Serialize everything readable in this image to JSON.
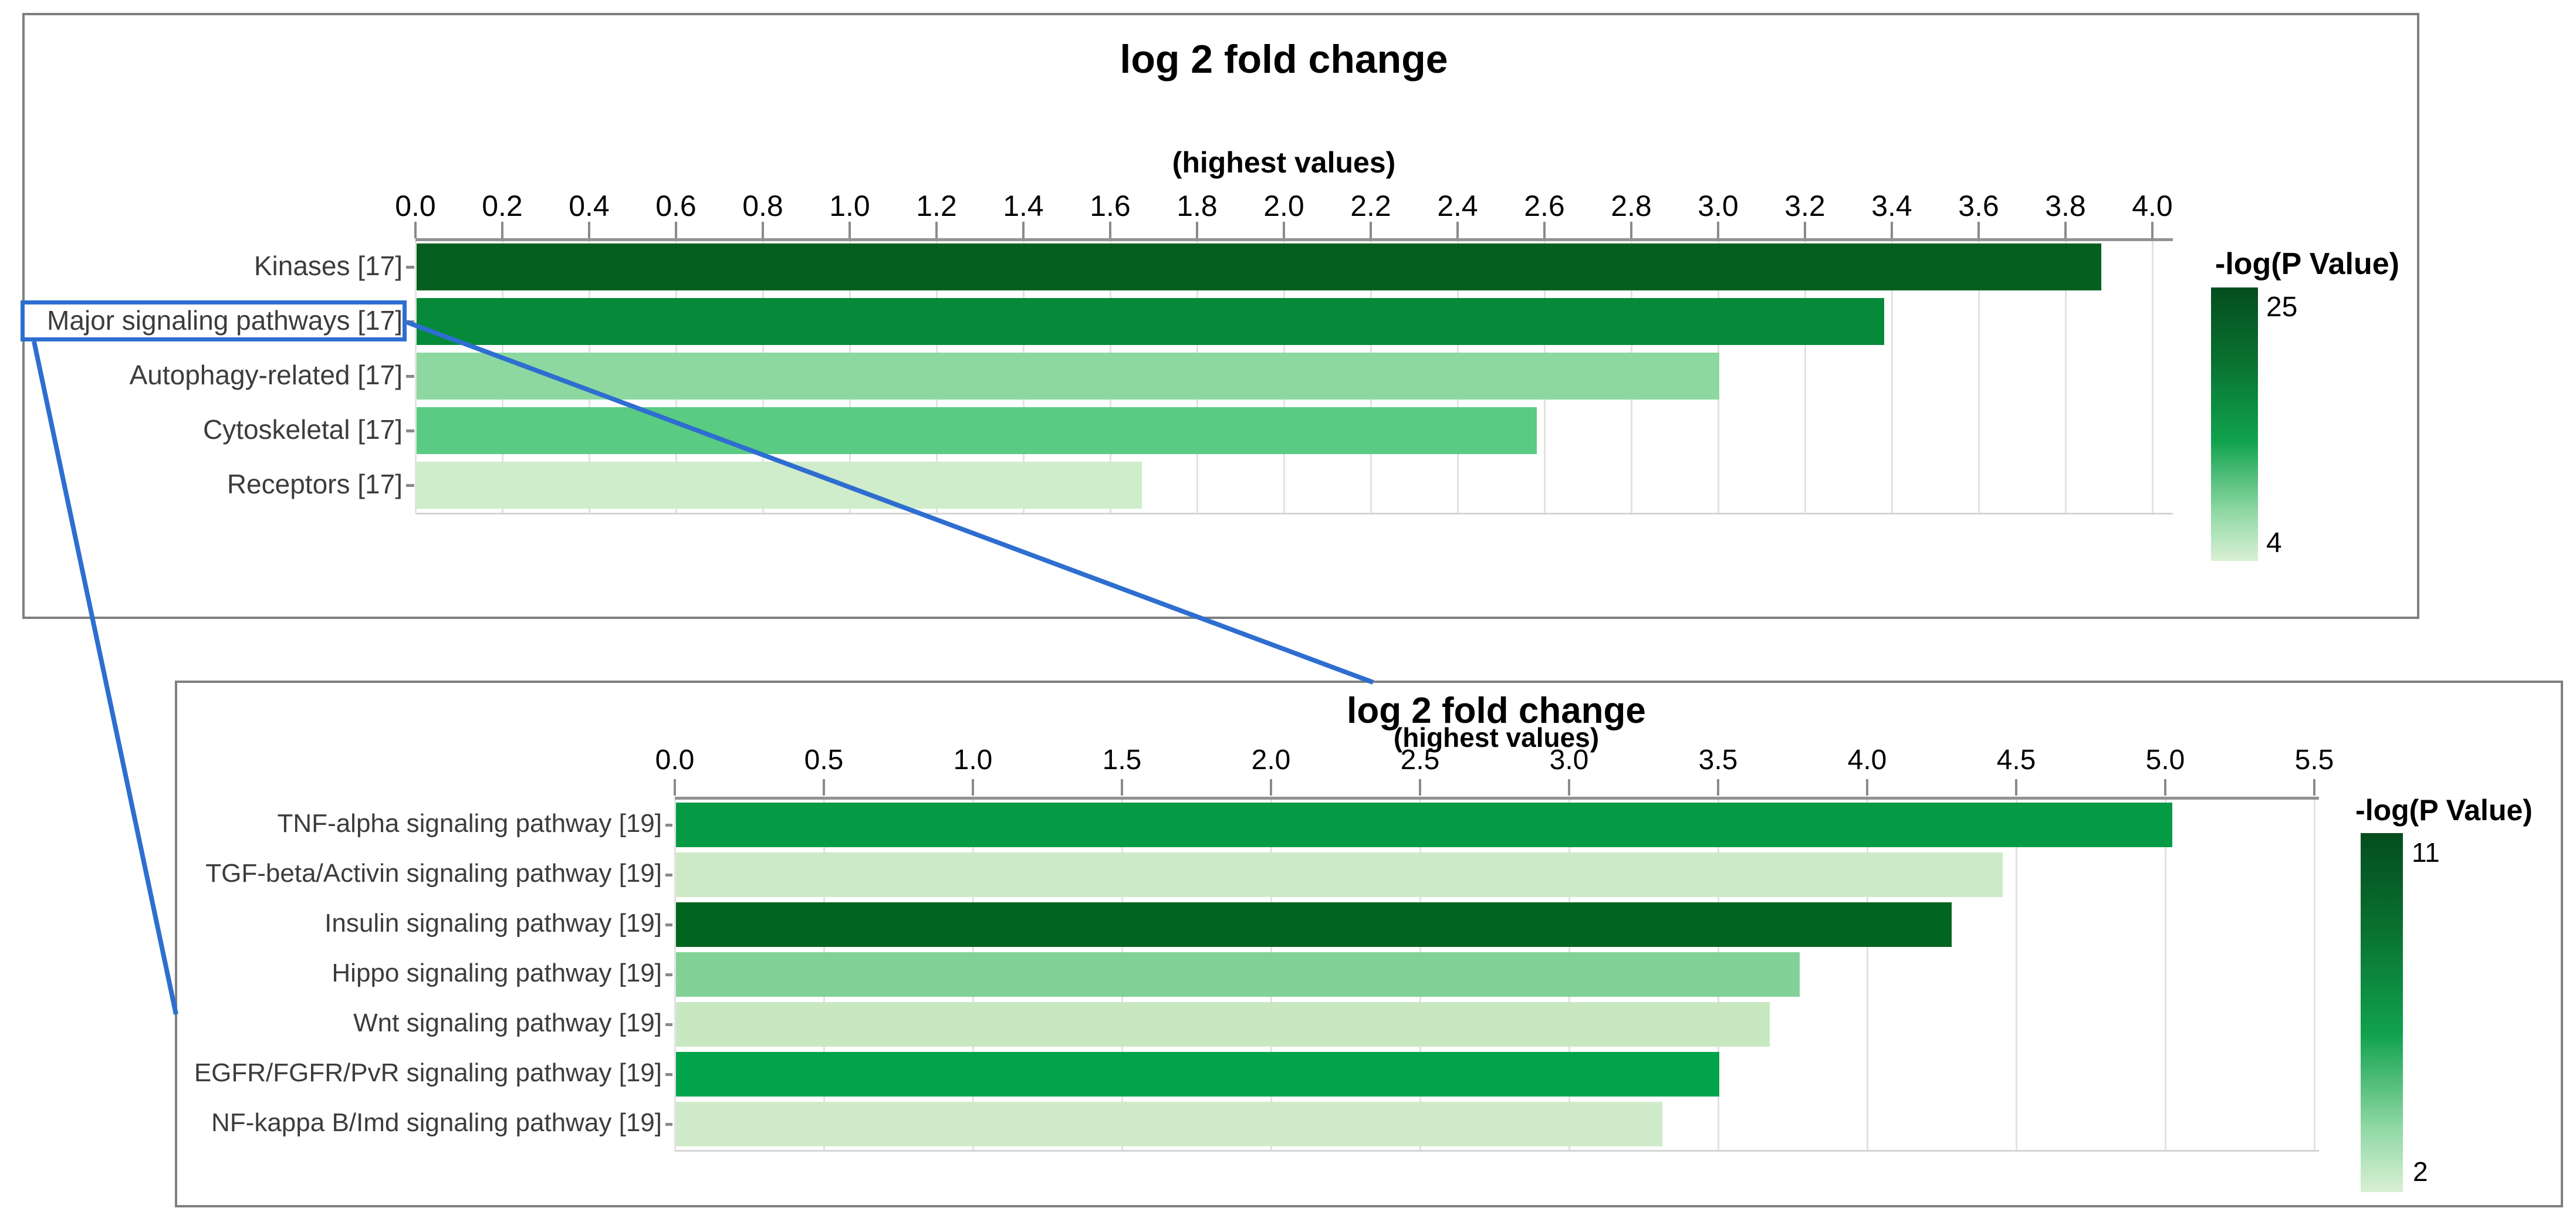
{
  "figure": {
    "description": "Two horizontal bar charts of log 2 fold change with -log(P Value) color scale; the 'Major signaling pathways' category of the overview chart is highlighted and expanded into the lower detail chart."
  },
  "chart_data": [
    {
      "type": "bar",
      "orientation": "horizontal",
      "title": "log 2 fold change",
      "subtitle": "(highest values)",
      "xlabel": "",
      "ylabel": "",
      "xlim": [
        0.0,
        4.05
      ],
      "tick_step": 0.2,
      "tick_labels": [
        "0.0",
        "0.2",
        "0.4",
        "0.6",
        "0.8",
        "1.0",
        "1.2",
        "1.4",
        "1.6",
        "1.8",
        "2.0",
        "2.2",
        "2.4",
        "2.6",
        "2.8",
        "3.0",
        "3.2",
        "3.4",
        "3.6",
        "3.8",
        "4.0"
      ],
      "grid": true,
      "categories": [
        "Kinases [17]",
        "Major signaling pathways [17]",
        "Autophagy-related [17]",
        "Cytoskeletal [17]",
        "Receptors [17]"
      ],
      "values": [
        3.88,
        3.38,
        3.0,
        2.58,
        1.67
      ],
      "bar_colors": [
        "#05601f",
        "#068a39",
        "#8cd8a0",
        "#5acb82",
        "#cfeccb"
      ],
      "legend": {
        "title": "-log(P Value)",
        "max": "25",
        "min": "4",
        "position": "right",
        "gradient": [
          "#044d1e",
          "#09702f",
          "#10a24d",
          "#8fd8a4",
          "#d9f0d3"
        ]
      }
    },
    {
      "type": "bar",
      "orientation": "horizontal",
      "title": "log 2 fold change",
      "subtitle": "(highest values)",
      "xlabel": "",
      "ylabel": "",
      "xlim": [
        0.0,
        5.55
      ],
      "tick_step": 0.5,
      "tick_labels": [
        "0.0",
        "0.5",
        "1.0",
        "1.5",
        "2.0",
        "2.5",
        "3.0",
        "3.5",
        "4.0",
        "4.5",
        "5.0",
        "5.5"
      ],
      "grid": true,
      "categories": [
        "TNF-alpha signaling pathway [19]",
        "TGF-beta/Activin signaling pathway [19]",
        "Insulin signaling pathway [19]",
        "Hippo signaling pathway [19]",
        "Wnt signaling pathway [19]",
        "EGFR/FGFR/PvR signaling pathway [19]",
        "NF-kappa B/Imd signaling pathway [19]"
      ],
      "values": [
        5.02,
        4.45,
        4.28,
        3.77,
        3.67,
        3.5,
        3.31
      ],
      "bar_colors": [
        "#059a44",
        "#cdeac6",
        "#01641f",
        "#82d298",
        "#c8e8c2",
        "#02a44b",
        "#d0ebc9"
      ],
      "legend": {
        "title": "-log(P Value)",
        "max": "11",
        "min": "2",
        "position": "right",
        "gradient": [
          "#044d1e",
          "#09702f",
          "#10a24d",
          "#8fd8a4",
          "#d9f0d3"
        ]
      }
    }
  ],
  "annotation": {
    "highlighted_category": "Major signaling pathways [17]",
    "line_color": "#2e6ed0"
  }
}
